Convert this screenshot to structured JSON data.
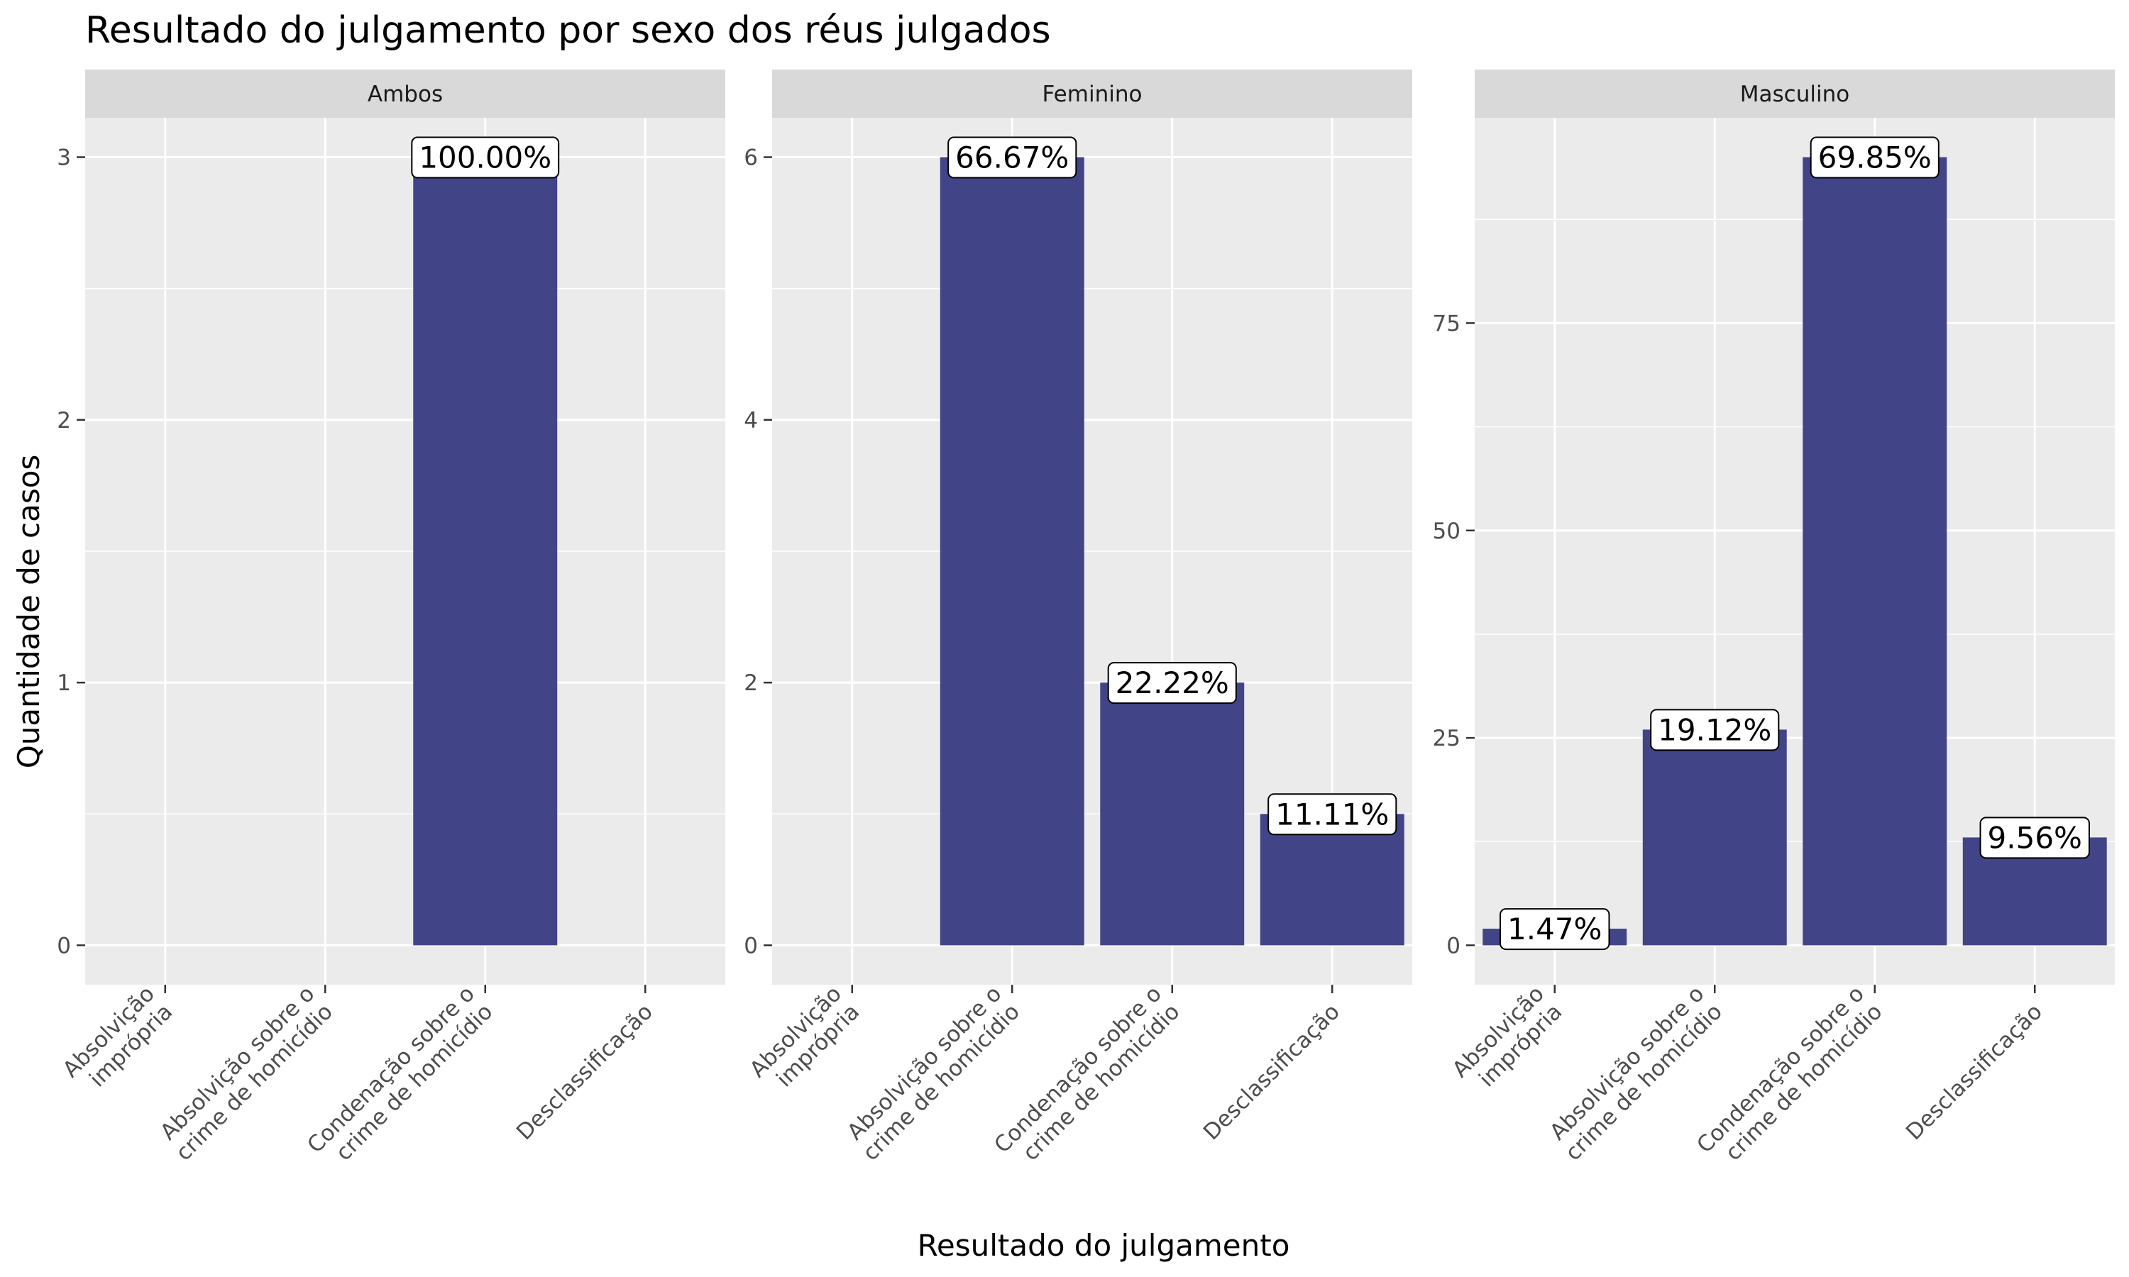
{
  "chart_data": {
    "type": "bar",
    "title": "Resultado do julgamento por sexo dos réus julgados",
    "xlabel": "Resultado do julgamento",
    "ylabel": "Quantidade de casos",
    "categories": [
      "Absolvição\nimprópria",
      "Absolvição sobre o\ncrime de homicídio",
      "Condenação sobre o\ncrime de homicídio",
      "Desclassificação"
    ],
    "bar_color": "#414487",
    "panel_background": "#ebebeb",
    "strip_background": "#d9d9d9",
    "grid": true,
    "panels": [
      {
        "name": "Ambos",
        "values": [
          0,
          0,
          3,
          0
        ],
        "labels": [
          "",
          "",
          "100.00%",
          ""
        ],
        "ylim": [
          -0.15,
          3.15
        ],
        "yticks": [
          0,
          1,
          2,
          3
        ],
        "yminor": [
          0.5,
          1.5,
          2.5
        ]
      },
      {
        "name": "Feminino",
        "values": [
          0,
          6,
          2,
          1
        ],
        "labels": [
          "",
          "66.67%",
          "22.22%",
          "11.11%"
        ],
        "ylim": [
          -0.3,
          6.3
        ],
        "yticks": [
          0,
          2,
          4,
          6
        ],
        "yminor": [
          1,
          3,
          5
        ]
      },
      {
        "name": "Masculino",
        "values": [
          2,
          26,
          95,
          13
        ],
        "labels": [
          "1.47%",
          "19.12%",
          "69.85%",
          "9.56%"
        ],
        "ylim": [
          -4.75,
          99.75
        ],
        "yticks": [
          0,
          25,
          50,
          75
        ],
        "yminor": [
          12.5,
          37.5,
          62.5,
          87.5
        ]
      }
    ]
  }
}
